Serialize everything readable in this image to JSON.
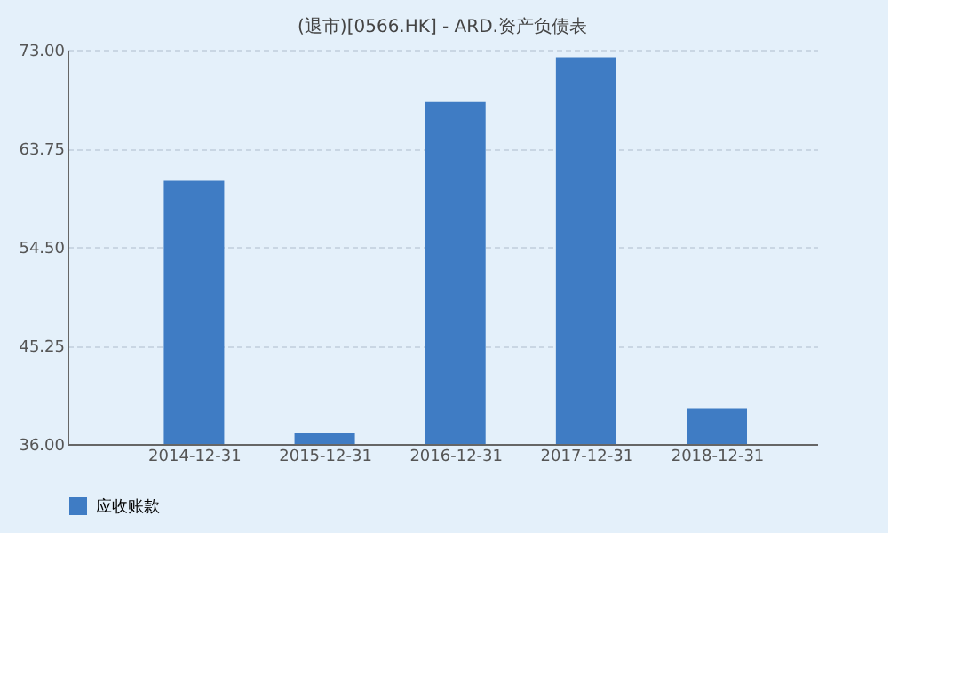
{
  "chart_data": {
    "type": "bar",
    "title": "(退市)[0566.HK] - ARD.资产负债表",
    "categories": [
      "2014-12-31",
      "2015-12-31",
      "2016-12-31",
      "2017-12-31",
      "2018-12-31"
    ],
    "series": [
      {
        "name": "应收账款",
        "color": "#3f7cc4",
        "values": [
          60.7,
          37.0,
          68.1,
          72.3,
          39.3
        ]
      }
    ],
    "ylim": [
      36,
      73
    ],
    "yticks": [
      {
        "value": 36,
        "label": "36.00"
      },
      {
        "value": 45.25,
        "label": "45.25"
      },
      {
        "value": 54.5,
        "label": "54.50"
      },
      {
        "value": 63.75,
        "label": "63.75"
      },
      {
        "value": 73,
        "label": "73.00"
      }
    ],
    "grid": "y",
    "legend": "bottom"
  }
}
